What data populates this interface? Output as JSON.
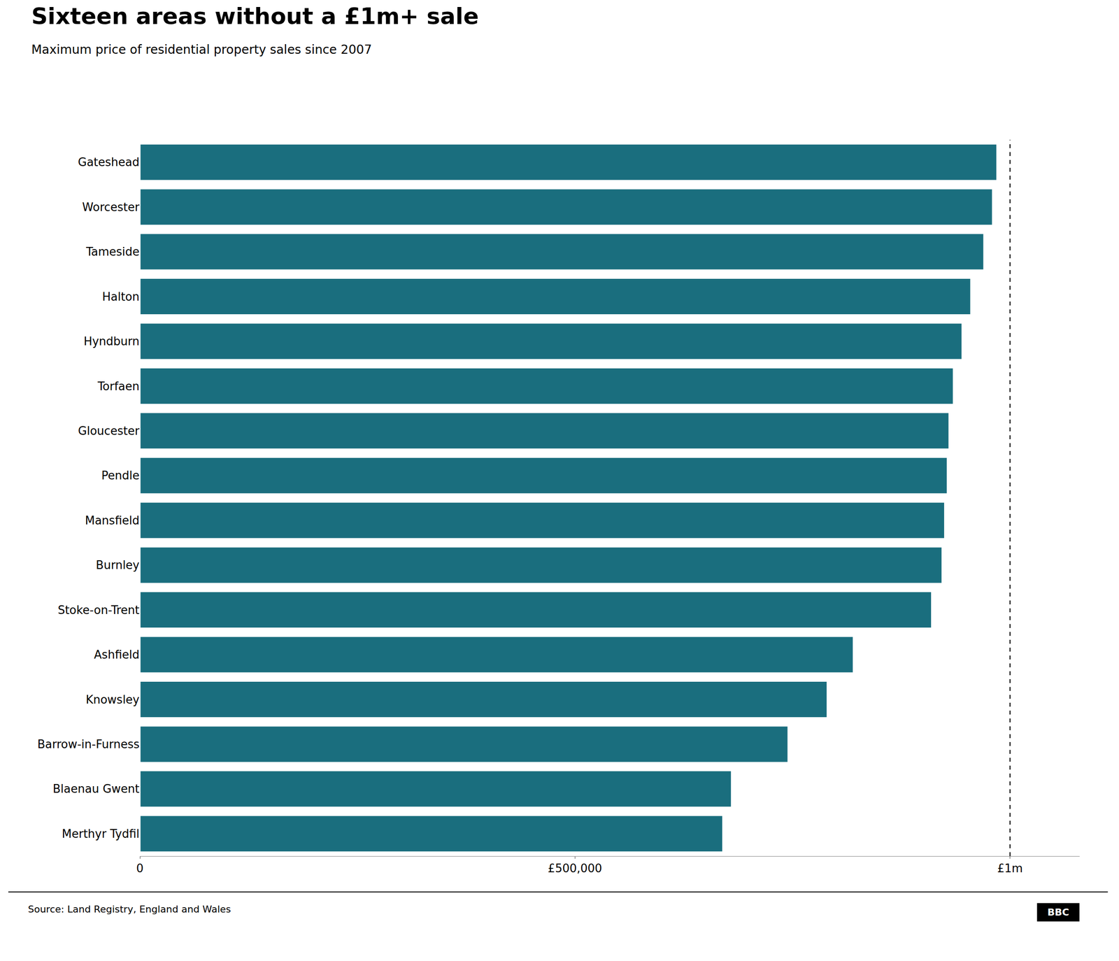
{
  "chart_data": {
    "type": "bar",
    "orientation": "horizontal",
    "title": "Sixteen areas without a £1m+ sale",
    "subtitle": "Maximum price of residential property sales since 2007",
    "source": "Source: Land Registry, England and Wales",
    "logo": "BBC",
    "categories": [
      "Gateshead",
      "Worcester",
      "Tameside",
      "Halton",
      "Hyndburn",
      "Torfaen",
      "Gloucester",
      "Pendle",
      "Mansfield",
      "Burnley",
      "Stoke-on-Trent",
      "Ashfield",
      "Knowsley",
      "Barrow-in-Furness",
      "Blaenau Gwent",
      "Merthyr Tydfil"
    ],
    "values": [
      985000,
      980000,
      970000,
      955000,
      945000,
      935000,
      930000,
      928000,
      925000,
      922000,
      910000,
      820000,
      790000,
      745000,
      680000,
      670000
    ],
    "color": "#1a6e7e",
    "vline": 1000000,
    "xlim": [
      0,
      1080000
    ],
    "xticks": [
      0,
      {
        "value": 500000,
        "label": "£500,000"
      },
      {
        "value": 1000000,
        "label": "£1m"
      }
    ],
    "grid": false
  }
}
